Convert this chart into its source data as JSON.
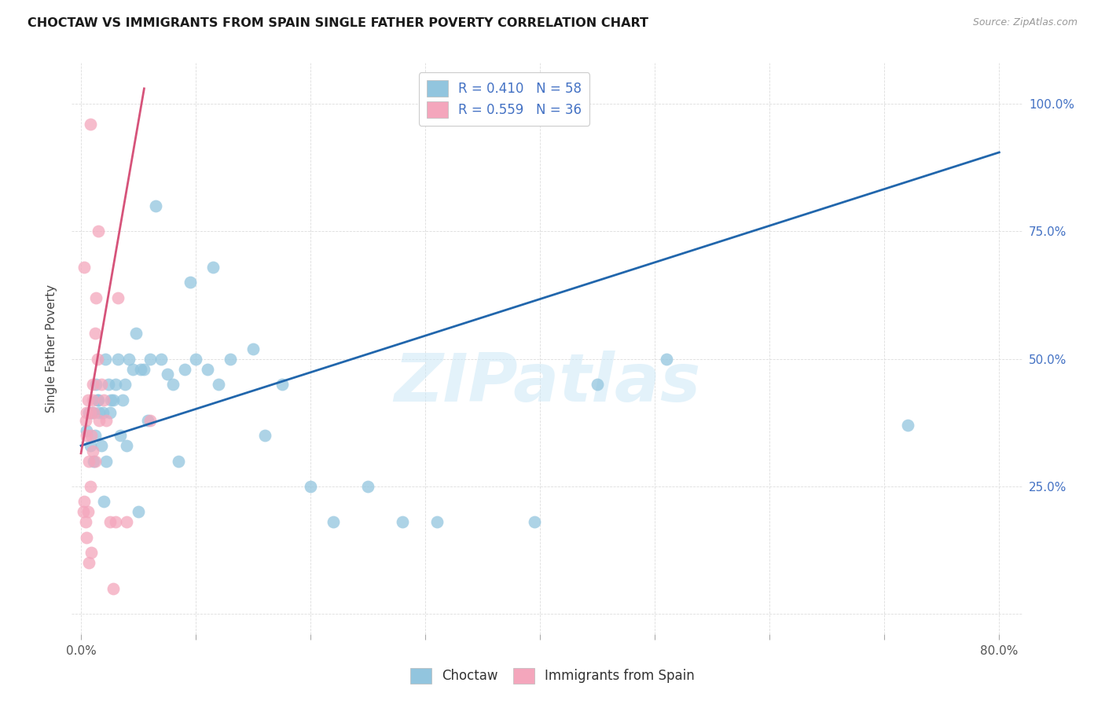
{
  "title": "CHOCTAW VS IMMIGRANTS FROM SPAIN SINGLE FATHER POVERTY CORRELATION CHART",
  "source": "Source: ZipAtlas.com",
  "ylabel_label": "Single Father Poverty",
  "xlim": [
    -0.008,
    0.82
  ],
  "ylim": [
    -0.04,
    1.08
  ],
  "legend1_label": "R = 0.410   N = 58",
  "legend2_label": "R = 0.559   N = 36",
  "legend_xlabel": "Choctaw",
  "legend_ylabel": "Immigrants from Spain",
  "blue_color": "#92c5de",
  "pink_color": "#f4a6bc",
  "blue_line_color": "#2166ac",
  "pink_line_color": "#d6537a",
  "watermark": "ZIPatlas",
  "blue_line_x0": 0.0,
  "blue_line_y0": 0.33,
  "blue_line_x1": 0.8,
  "blue_line_y1": 0.905,
  "pink_line_x0": 0.0,
  "pink_line_y0": 0.315,
  "pink_line_x1": 0.055,
  "pink_line_y1": 1.03,
  "blue_scatter_x": [
    0.005,
    0.007,
    0.008,
    0.009,
    0.01,
    0.011,
    0.012,
    0.013,
    0.014,
    0.015,
    0.016,
    0.018,
    0.019,
    0.02,
    0.021,
    0.022,
    0.024,
    0.025,
    0.026,
    0.028,
    0.03,
    0.032,
    0.034,
    0.036,
    0.038,
    0.04,
    0.042,
    0.045,
    0.048,
    0.05,
    0.052,
    0.055,
    0.058,
    0.06,
    0.065,
    0.07,
    0.075,
    0.08,
    0.085,
    0.09,
    0.095,
    0.1,
    0.11,
    0.115,
    0.12,
    0.13,
    0.15,
    0.16,
    0.175,
    0.2,
    0.22,
    0.25,
    0.28,
    0.31,
    0.395,
    0.45,
    0.51,
    0.72
  ],
  "blue_scatter_y": [
    0.36,
    0.395,
    0.33,
    0.395,
    0.395,
    0.3,
    0.35,
    0.45,
    0.42,
    0.42,
    0.395,
    0.33,
    0.395,
    0.22,
    0.5,
    0.3,
    0.45,
    0.395,
    0.42,
    0.42,
    0.45,
    0.5,
    0.35,
    0.42,
    0.45,
    0.33,
    0.5,
    0.48,
    0.55,
    0.2,
    0.48,
    0.48,
    0.38,
    0.5,
    0.8,
    0.5,
    0.47,
    0.45,
    0.3,
    0.48,
    0.65,
    0.5,
    0.48,
    0.68,
    0.45,
    0.5,
    0.52,
    0.35,
    0.45,
    0.25,
    0.18,
    0.25,
    0.18,
    0.18,
    0.18,
    0.45,
    0.5,
    0.37
  ],
  "pink_scatter_x": [
    0.002,
    0.003,
    0.003,
    0.004,
    0.004,
    0.005,
    0.005,
    0.005,
    0.006,
    0.006,
    0.007,
    0.007,
    0.008,
    0.008,
    0.008,
    0.009,
    0.009,
    0.01,
    0.01,
    0.01,
    0.011,
    0.012,
    0.012,
    0.013,
    0.014,
    0.015,
    0.016,
    0.018,
    0.02,
    0.022,
    0.025,
    0.028,
    0.03,
    0.032,
    0.04,
    0.06
  ],
  "pink_scatter_y": [
    0.2,
    0.22,
    0.68,
    0.18,
    0.38,
    0.15,
    0.35,
    0.395,
    0.2,
    0.42,
    0.3,
    0.1,
    0.25,
    0.395,
    0.96,
    0.35,
    0.12,
    0.42,
    0.45,
    0.32,
    0.395,
    0.55,
    0.3,
    0.62,
    0.5,
    0.75,
    0.38,
    0.45,
    0.42,
    0.38,
    0.18,
    0.05,
    0.18,
    0.62,
    0.18,
    0.38
  ],
  "x_ticks": [
    0.0,
    0.1,
    0.2,
    0.3,
    0.4,
    0.5,
    0.6,
    0.7,
    0.8
  ],
  "x_tick_labels": [
    "0.0%",
    "",
    "",
    "",
    "",
    "",
    "",
    "",
    "80.0%"
  ],
  "y_ticks": [
    0.0,
    0.25,
    0.5,
    0.75,
    1.0
  ],
  "y_tick_labels_right": [
    "",
    "25.0%",
    "50.0%",
    "75.0%",
    "100.0%"
  ]
}
